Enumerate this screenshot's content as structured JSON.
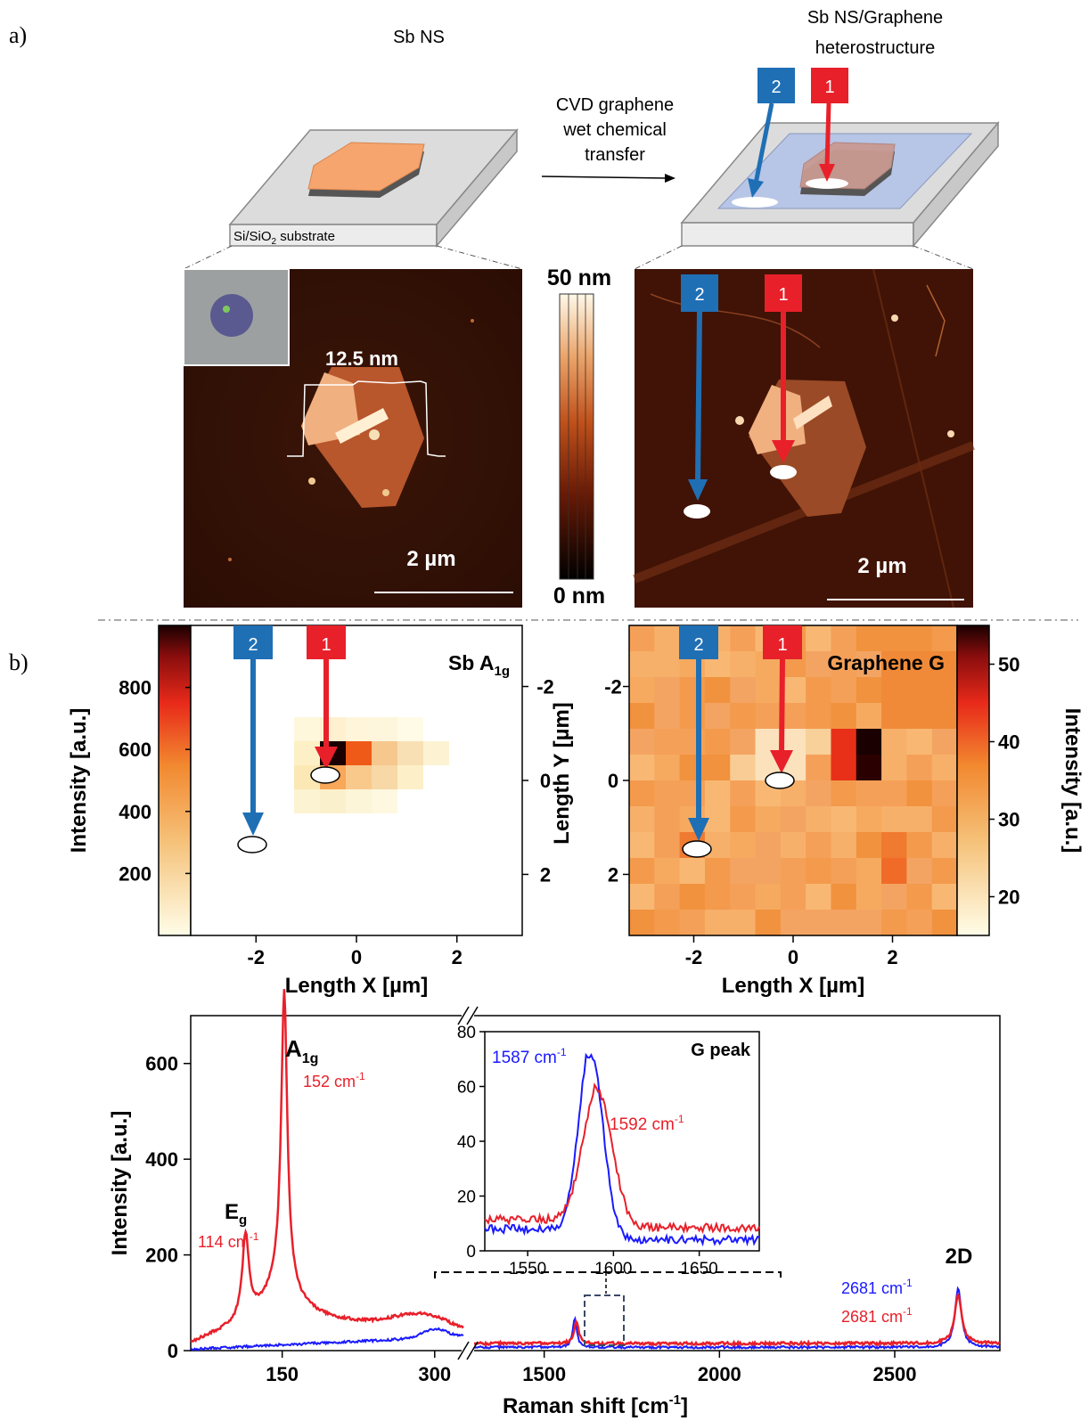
{
  "panel_a": {
    "label": "a)",
    "left_title": "Sb NS",
    "right_title_1": "Sb NS/Graphene",
    "right_title_2": "heterostructure",
    "transfer_1": "CVD graphene",
    "transfer_2": "wet chemical",
    "transfer_3": "transfer",
    "substrate_main": "Si/SiO",
    "substrate_sub": "2",
    "substrate_tail": " substrate",
    "marker_1": "1",
    "marker_2": "2",
    "height_label": "12.5 nm",
    "scale_left": "2 µm",
    "scale_right": "2 µm",
    "colorbar_top": "50 nm",
    "colorbar_bottom": "0 nm"
  },
  "panel_b": {
    "label": "b)",
    "map_left_title": "Sb A",
    "map_left_title_sub": "1g",
    "map_right_title": "Graphene G",
    "cb_left_label": "Intensity [a.u.]",
    "cb_left_ticks": [
      "800",
      "600",
      "400",
      "200"
    ],
    "cb_right_label": "Intensity [a.u.]",
    "cb_right_ticks": [
      "50",
      "40",
      "30",
      "20"
    ],
    "y_label": "Length Y [µm]",
    "y_ticks": [
      "-2",
      "0",
      "2"
    ],
    "x_label_left": "Length X [µm]",
    "x_label_right": "Length X [µm]",
    "x_ticks": [
      "-2",
      "0",
      "2"
    ],
    "marker_1": "1",
    "marker_2": "2"
  },
  "spectrum": {
    "y_label": "Intensity [a.u.]",
    "x_label": "Raman shift [cm",
    "x_label_sup": "-1",
    "x_label_tail": "]",
    "y_ticks": [
      "0",
      "200",
      "400",
      "600"
    ],
    "x_ticks_left": [
      "150",
      "300"
    ],
    "x_ticks_right": [
      "1500",
      "2000",
      "2500"
    ],
    "peak_eg": "E",
    "peak_eg_sub": "g",
    "peak_eg_val": "114 cm",
    "peak_a1g": "A",
    "peak_a1g_sub": "1g",
    "peak_a1g_val": "152 cm",
    "peak_2d": "2D",
    "peak_2d_blue": "2681 cm",
    "peak_2d_red": "2681 cm",
    "sup": "-1",
    "inset_title": "G peak",
    "inset_blue": "1587 cm",
    "inset_red": "1592 cm",
    "inset_y_ticks": [
      "0",
      "20",
      "40",
      "60",
      "80"
    ],
    "inset_x_ticks": [
      "1550",
      "1600",
      "1650"
    ]
  },
  "colors": {
    "red": "#e8202a",
    "blue": "#1f6fb5",
    "spec_blue": "#1a1aff",
    "spec_red": "#e8202a"
  },
  "chart_data": [
    {
      "type": "heatmap",
      "title": "Sb A1g",
      "xlabel": "Length X [µm]",
      "ylabel": "Length Y [µm]",
      "xlim": [
        -3.3,
        3.3
      ],
      "ylim": [
        3.3,
        -3.3
      ],
      "colorbar": {
        "label": "Intensity [a.u.]",
        "range": [
          0,
          1000
        ]
      },
      "cells": [
        {
          "x": -0.5,
          "y": -0.5,
          "v": 950
        },
        {
          "x": 0.0,
          "y": -0.5,
          "v": 700
        },
        {
          "x": -0.5,
          "y": 0.0,
          "v": 520
        },
        {
          "x": 0.0,
          "y": 0.0,
          "v": 420
        }
      ]
    },
    {
      "type": "heatmap",
      "title": "Graphene G",
      "xlabel": "Length X [µm]",
      "ylabel": "Length Y [µm]",
      "xlim": [
        -3.3,
        3.3
      ],
      "ylim": [
        3.3,
        -3.3
      ],
      "colorbar": {
        "label": "Intensity [a.u.]",
        "range": [
          15,
          55
        ]
      }
    },
    {
      "type": "line",
      "xlabel": "Raman shift [cm-1]",
      "ylabel": "Intensity [a.u.]",
      "ylim": [
        0,
        700
      ],
      "series": [
        {
          "name": "1",
          "color": "#e8202a",
          "x": [
            60,
            100,
            114,
            125,
            140,
            152,
            165,
            200,
            260,
            300,
            330,
            1500,
            1592,
            1700,
            2600,
            2681,
            2800
          ],
          "y": [
            15,
            50,
            200,
            90,
            120,
            630,
            140,
            40,
            35,
            55,
            20,
            15,
            58,
            18,
            12,
            115,
            12
          ]
        },
        {
          "name": "2",
          "color": "#1a1aff",
          "x": [
            60,
            150,
            300,
            330,
            1500,
            1587,
            1700,
            2600,
            2681,
            2800
          ],
          "y": [
            3,
            10,
            40,
            10,
            8,
            72,
            10,
            5,
            128,
            5
          ]
        }
      ],
      "annotations": [
        "Eg 114 cm-1",
        "A1g 152 cm-1",
        "2D 2681 cm-1"
      ]
    },
    {
      "type": "line",
      "title": "G peak",
      "xlim": [
        1525,
        1685
      ],
      "ylim": [
        0,
        80
      ],
      "series": [
        {
          "name": "1",
          "color": "#e8202a",
          "x": [
            1525,
            1560,
            1575,
            1585,
            1592,
            1600,
            1610,
            1640,
            1685
          ],
          "y": [
            10,
            13,
            18,
            45,
            58,
            40,
            14,
            10,
            8
          ]
        },
        {
          "name": "2",
          "color": "#1a1aff",
          "x": [
            1525,
            1560,
            1575,
            1582,
            1587,
            1595,
            1605,
            1640,
            1685
          ],
          "y": [
            5,
            8,
            15,
            50,
            72,
            45,
            8,
            5,
            3
          ]
        }
      ],
      "annotations": [
        "1587 cm-1",
        "1592 cm-1"
      ]
    }
  ]
}
